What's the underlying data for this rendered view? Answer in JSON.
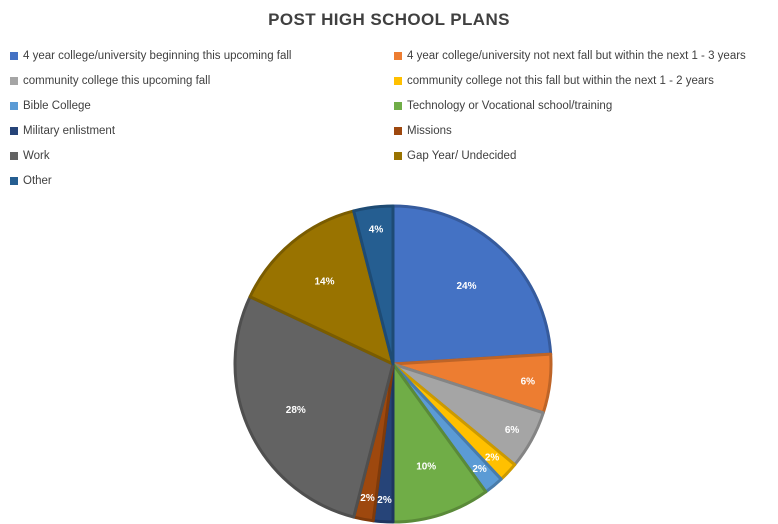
{
  "chart_data": {
    "type": "pie",
    "title": "POST HIGH SCHOOL PLANS",
    "legend_position": "top",
    "slices": [
      {
        "name": "4 year college/university beginning this upcoming fall",
        "value": 24,
        "label": "24%",
        "color": "#4472C4"
      },
      {
        "name": "4 year college/university not next fall but within the next 1 - 3 years",
        "value": 6,
        "label": "6%",
        "color": "#ED7D31"
      },
      {
        "name": "community college this upcoming fall",
        "value": 6,
        "label": "6%",
        "color": "#A5A5A5"
      },
      {
        "name": "community college not this fall but within the next 1 - 2 years",
        "value": 2,
        "label": "2%",
        "color": "#FFC000"
      },
      {
        "name": "Bible College",
        "value": 2,
        "label": "2%",
        "color": "#5B9BD5"
      },
      {
        "name": "Technology or Vocational school/training",
        "value": 10,
        "label": "10%",
        "color": "#70AD47"
      },
      {
        "name": "Military enlistment",
        "value": 2,
        "label": "2%",
        "color": "#264478"
      },
      {
        "name": "Missions",
        "value": 2,
        "label": "2%",
        "color": "#9E480E"
      },
      {
        "name": "Work",
        "value": 28,
        "label": "28%",
        "color": "#636363"
      },
      {
        "name": "Gap Year/ Undecided",
        "value": 14,
        "label": "14%",
        "color": "#997300"
      },
      {
        "name": "Other",
        "value": 4,
        "label": "4%",
        "color": "#255E91"
      }
    ]
  }
}
